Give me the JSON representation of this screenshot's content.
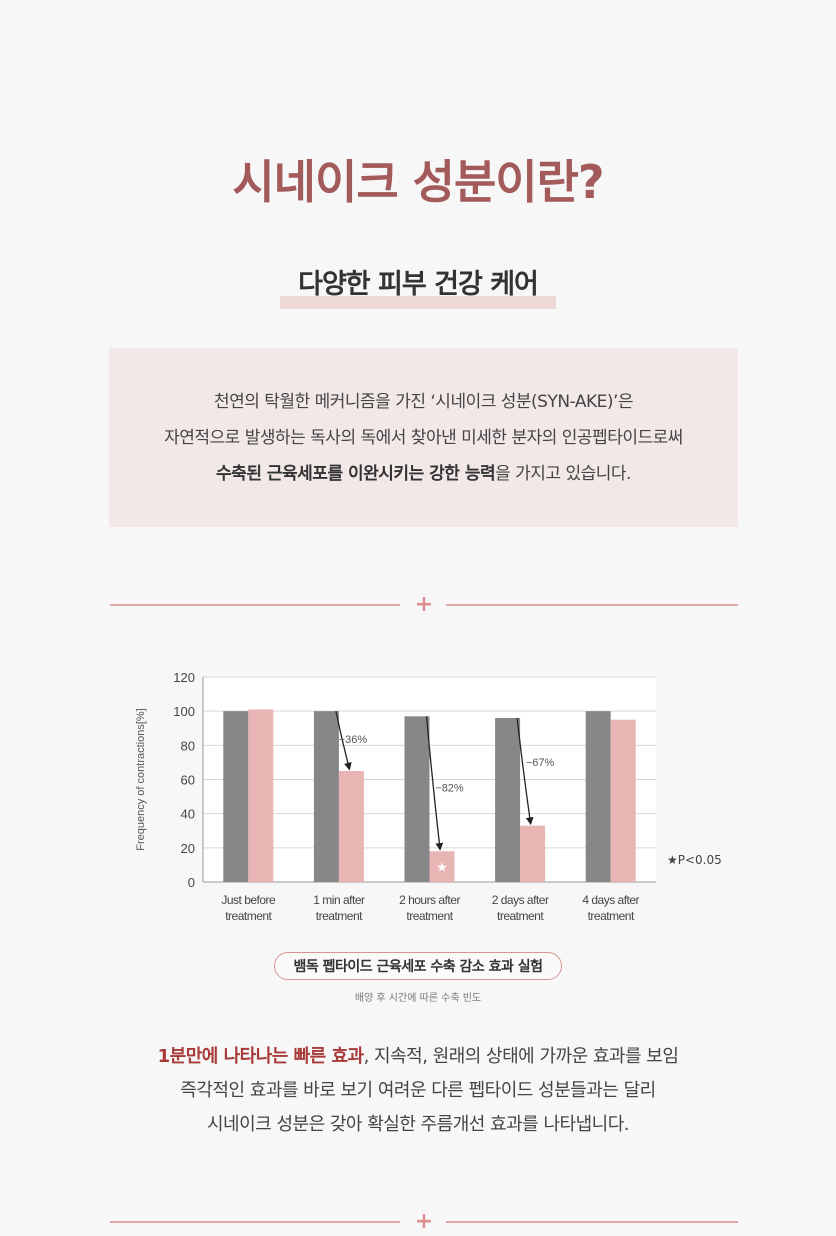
{
  "header": {
    "title": "시네이크 성분이란?",
    "subtitle": "다양한 피부 건강 케어"
  },
  "intro": {
    "line1": "천연의 탁월한 메커니즘을 가진 ‘시네이크 성분(SYN-AKE)’은",
    "line2": "자연적으로 발생하는 독사의 독에서  찾아낸 미세한 분자의 인공펩타이드로써",
    "line3_bold": "수축된 근육세포를 이완시키는 강한 능력",
    "line3_rest": "을 가지고 있습니다."
  },
  "chart_data": {
    "type": "bar",
    "ylabel": "Frequency of contractions[%]",
    "xlabel": "",
    "ylim": [
      0,
      120
    ],
    "yticks": [
      0,
      20,
      40,
      60,
      80,
      100,
      120
    ],
    "categories": [
      [
        "Just before",
        "treatment"
      ],
      [
        "1 min after",
        "treatment"
      ],
      [
        "2 hours after",
        "treatment"
      ],
      [
        "2 days after",
        "treatment"
      ],
      [
        "4 days after",
        "treatment"
      ]
    ],
    "series": [
      {
        "values": [
          100,
          100,
          97,
          96,
          100
        ],
        "color": "#858789"
      },
      {
        "values": [
          101,
          65,
          18,
          33,
          95
        ],
        "color": "#e8b4b4"
      }
    ],
    "annotations": [
      {
        "category": 1,
        "text": "−36%"
      },
      {
        "category": 2,
        "text": "−82%"
      },
      {
        "category": 3,
        "text": "−67%"
      }
    ],
    "significance_marker": {
      "category": 2,
      "symbol": "★"
    },
    "significance_note": "★P<0.05",
    "grid": true
  },
  "chart_caption": {
    "title": "뱀독 펩타이드 근육세포 수축 감소 효과 실험",
    "subtitle": "배양 후 시간에 따른 수축 빈도"
  },
  "summary": {
    "line1_accent": "1분만에 나타나는 빠른 효과",
    "line1_rest": ", 지속적, 원래의 상태에 가까운 효과를 보임",
    "line2": "즉각적인 효과를 바로 보기 여려운 다른 펩타이드 성분들과는 달리",
    "line3": "시네이크 성분은 갖아 확실한 주름개선 효과를 나타냅니다."
  },
  "colors": {
    "title": "#a35a5a",
    "accent": "#a83a3a",
    "divider": "#e0a7a7"
  }
}
